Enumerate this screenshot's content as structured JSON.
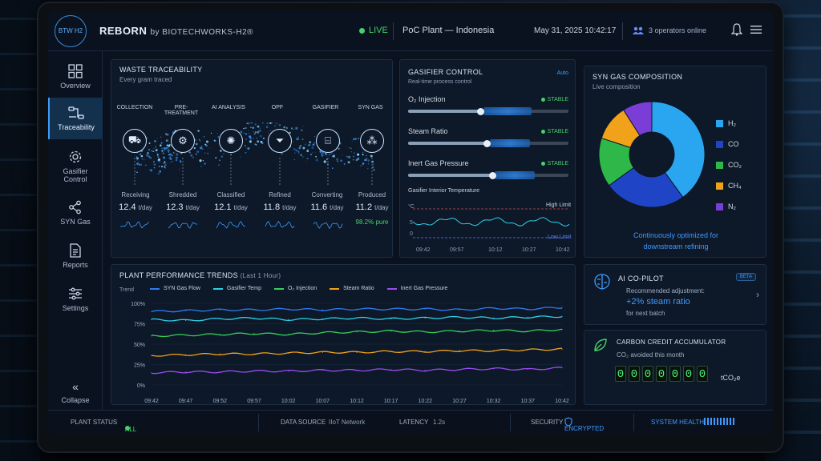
{
  "header": {
    "logo_text": "BTW H2",
    "brand_name": "REBORN",
    "brand_by": "by BIOTECHWORKS-H2®",
    "live_label": "LIVE",
    "plant_label": "PoC Plant — Indonesia",
    "datetime": "May 31, 2025 10:42:17",
    "operators": "3 operators online"
  },
  "sidebar": {
    "items": [
      {
        "label": "Overview",
        "icon": "grid-icon"
      },
      {
        "label": "Traceability",
        "icon": "flow-icon"
      },
      {
        "label": "Gasifier Control",
        "icon": "gear-icon"
      },
      {
        "label": "SYN Gas",
        "icon": "molecule-icon"
      },
      {
        "label": "Reports",
        "icon": "document-icon"
      },
      {
        "label": "Settings",
        "icon": "sliders-icon"
      }
    ],
    "collapse_label": "Collapse"
  },
  "traceability": {
    "title": "WASTE TRACEABILITY",
    "subtitle": "Every gram traced",
    "stages": [
      {
        "name": "COLLECTION",
        "status": "Receiving",
        "value": "12.4",
        "unit": "t/day"
      },
      {
        "name": "PRE-TREATMENT",
        "status": "Shredded",
        "value": "12.3",
        "unit": "t/day"
      },
      {
        "name": "AI ANALYSIS",
        "status": "Classified",
        "value": "12.1",
        "unit": "t/day"
      },
      {
        "name": "OPF",
        "status": "Refined",
        "value": "11.8",
        "unit": "t/day"
      },
      {
        "name": "GASIFIER",
        "status": "Converting",
        "value": "11.6",
        "unit": "t/day"
      },
      {
        "name": "SYN GAS",
        "status": "Produced",
        "value": "11.2",
        "unit": "t/day",
        "extra": "98.2% pure"
      }
    ]
  },
  "gasifier": {
    "title": "GASIFIER CONTROL",
    "subtitle": "Real-time process control",
    "mode": "Auto",
    "controls": [
      {
        "label": "O₂ Injection",
        "status": "STABLE",
        "level": 0.45
      },
      {
        "label": "Steam Ratio",
        "status": "STABLE",
        "level": 0.5
      },
      {
        "label": "Inert Gas Pressure",
        "status": "STABLE",
        "level": 0.53
      }
    ],
    "temp_title": "Gasifier Interior Temperature",
    "temp_unit": "°C",
    "high_limit": "High Limit",
    "low_limit": "Low Limit",
    "temp_ticks": [
      "09:42",
      "09:57",
      "10:12",
      "10:27",
      "10:42"
    ],
    "temp_yticks": [
      "",
      "5",
      "0"
    ]
  },
  "syngas": {
    "title": "SYN GAS COMPOSITION",
    "subtitle": "Live composition",
    "footer_line1": "Continuously optimized for",
    "footer_line2": "downstream refining",
    "components": [
      {
        "label": "H₂",
        "value": 40,
        "color": "#2aa6f0"
      },
      {
        "label": "CO",
        "value": 25,
        "color": "#1f45c6"
      },
      {
        "label": "CO₂",
        "value": 15,
        "color": "#2fb84a"
      },
      {
        "label": "CH₄",
        "value": 11,
        "color": "#f0a21a"
      },
      {
        "label": "N₂",
        "value": 9,
        "color": "#7a3ed6"
      }
    ]
  },
  "trends": {
    "title": "PLANT PERFORMANCE TRENDS",
    "range": "(Last 1 Hour)",
    "trend_label": "Trend",
    "series_legend": [
      {
        "label": "SYN Gas Flow",
        "color": "#2f7bf0"
      },
      {
        "label": "Gasifier Temp",
        "color": "#2ed0e6"
      },
      {
        "label": "O₂ Injection",
        "color": "#35d05a"
      },
      {
        "label": "Steam Ratio",
        "color": "#f0a21a"
      },
      {
        "label": "Inert Gas Pressure",
        "color": "#9a4cf0"
      }
    ],
    "y_ticks": [
      "100%",
      "75%",
      "50%",
      "25%",
      "0%"
    ],
    "x_ticks": [
      "09:42",
      "09:47",
      "09:52",
      "09:57",
      "10:02",
      "10:07",
      "10:12",
      "10:17",
      "10:22",
      "10:27",
      "10:32",
      "10:37",
      "10:42"
    ]
  },
  "chart_data": {
    "type": "line",
    "title": "PLANT PERFORMANCE TRENDS",
    "ylim": [
      0,
      100
    ],
    "x": [
      "09:42",
      "09:47",
      "09:52",
      "09:57",
      "10:02",
      "10:07",
      "10:12",
      "10:17",
      "10:22",
      "10:27",
      "10:32",
      "10:37",
      "10:42"
    ],
    "series": [
      {
        "name": "SYN Gas Flow",
        "values": [
          90,
          91,
          92,
          92,
          93,
          92,
          93,
          93,
          93,
          92,
          94,
          93,
          95
        ]
      },
      {
        "name": "Gasifier Temp",
        "values": [
          80,
          79,
          81,
          82,
          80,
          81,
          82,
          81,
          82,
          83,
          82,
          83,
          84
        ]
      },
      {
        "name": "O₂ Injection",
        "values": [
          60,
          61,
          62,
          63,
          62,
          64,
          65,
          66,
          65,
          66,
          67,
          66,
          68
        ]
      },
      {
        "name": "Steam Ratio",
        "values": [
          36,
          37,
          38,
          38,
          39,
          40,
          40,
          41,
          41,
          42,
          42,
          43,
          44
        ]
      },
      {
        "name": "Inert Gas Pressure",
        "values": [
          15,
          16,
          16,
          17,
          17,
          18,
          18,
          19,
          18,
          19,
          20,
          19,
          21
        ]
      }
    ]
  },
  "copilot": {
    "title": "AI CO-PILOT",
    "badge": "BETA",
    "line1": "Recommended adjustment:",
    "highlight": "+2% steam ratio",
    "line3": "for next batch"
  },
  "carbon": {
    "title": "CARBON CREDIT ACCUMULATOR",
    "subtitle": "CO₂ avoided this month",
    "digits": [
      "0",
      "0",
      "0",
      "0",
      "0",
      "0",
      "0"
    ],
    "unit": "tCO₂e"
  },
  "statusbar": {
    "plant_status_label": "PLANT STATUS",
    "plant_status_value": "ALL SYSTEMS NORMAL",
    "data_source_label": "DATA SOURCE",
    "data_source_value": "IIoT Network",
    "latency_label": "LATENCY",
    "latency_value": "1.2s",
    "security_label": "SECURITY",
    "security_value": "ENCRYPTED",
    "health_label": "SYSTEM HEALTH"
  }
}
